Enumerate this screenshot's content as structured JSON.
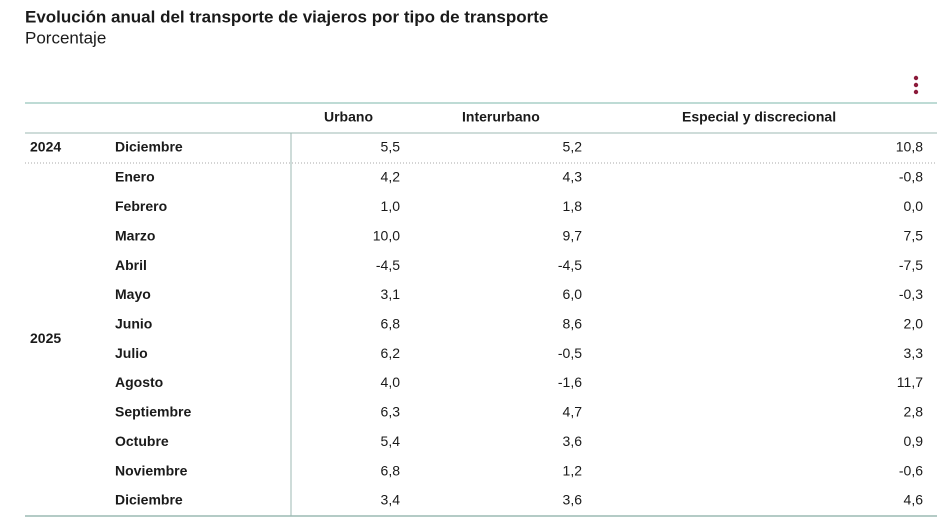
{
  "header": {
    "title": "Evolución anual del transporte de viajeros por tipo de transporte",
    "subtitle": "Porcentaje"
  },
  "table": {
    "columns": [
      "Urbano",
      "Interurbano",
      "Especial y discrecional"
    ],
    "groups": [
      {
        "year": "2024",
        "rows": [
          {
            "month": "Diciembre",
            "values": [
              "5,5",
              "5,2",
              "10,8"
            ]
          }
        ]
      },
      {
        "year": "2025",
        "rows": [
          {
            "month": "Enero",
            "values": [
              "4,2",
              "4,3",
              "-0,8"
            ]
          },
          {
            "month": "Febrero",
            "values": [
              "1,0",
              "1,8",
              "0,0"
            ]
          },
          {
            "month": "Marzo",
            "values": [
              "10,0",
              "9,7",
              "7,5"
            ]
          },
          {
            "month": "Abril",
            "values": [
              "-4,5",
              "-4,5",
              "-7,5"
            ]
          },
          {
            "month": "Mayo",
            "values": [
              "3,1",
              "6,0",
              "-0,3"
            ]
          },
          {
            "month": "Junio",
            "values": [
              "6,8",
              "8,6",
              "2,0"
            ]
          },
          {
            "month": "Julio",
            "values": [
              "6,2",
              "-0,5",
              "3,3"
            ]
          },
          {
            "month": "Agosto",
            "values": [
              "4,0",
              "-1,6",
              "11,7"
            ]
          },
          {
            "month": "Septiembre",
            "values": [
              "6,3",
              "4,7",
              "2,8"
            ]
          },
          {
            "month": "Octubre",
            "values": [
              "5,4",
              "3,6",
              "0,9"
            ]
          },
          {
            "month": "Noviembre",
            "values": [
              "6,8",
              "1,2",
              "-0,6"
            ]
          },
          {
            "month": "Diciembre",
            "values": [
              "3,4",
              "3,6",
              "4,6"
            ]
          }
        ]
      }
    ]
  }
}
